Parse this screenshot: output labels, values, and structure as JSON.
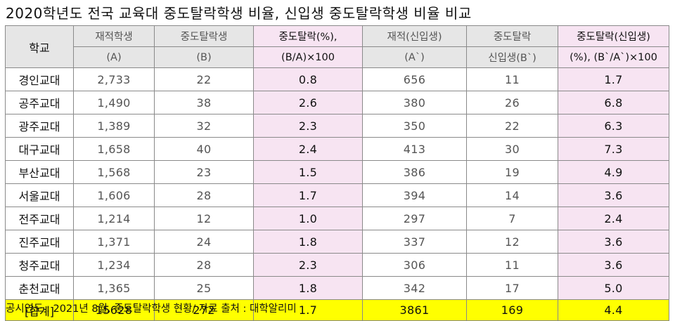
{
  "title": "2020학년도 전국 교육대 중도탈락학생 비율, 신입생 중도탈락학생 비율 비교",
  "header": {
    "school": "학교",
    "enrolled_l1": "재적학생",
    "enrolled_l2": "(A)",
    "dropout_l1": "중도탈락생",
    "dropout_l2": "(B)",
    "rate_l1": "중도탈락(%),",
    "rate_l2": "(B/A)×100",
    "fresh_enrolled_l1": "재적(신입생)",
    "fresh_enrolled_l2": "(A`)",
    "fresh_dropout_l1": "중도탈락",
    "fresh_dropout_l2": "신입생(B`)",
    "fresh_rate_l1": "중도탈락(신입생)",
    "fresh_rate_l2": "(%), (B`/A`)×100"
  },
  "rows": [
    {
      "school": "경인교대",
      "enrolled": "2,733",
      "dropout": "22",
      "rate": "0.8",
      "fresh_enrolled": "656",
      "fresh_dropout": "11",
      "fresh_rate": "1.7"
    },
    {
      "school": "공주교대",
      "enrolled": "1,490",
      "dropout": "38",
      "rate": "2.6",
      "fresh_enrolled": "380",
      "fresh_dropout": "26",
      "fresh_rate": "6.8"
    },
    {
      "school": "광주교대",
      "enrolled": "1,389",
      "dropout": "32",
      "rate": "2.3",
      "fresh_enrolled": "350",
      "fresh_dropout": "22",
      "fresh_rate": "6.3"
    },
    {
      "school": "대구교대",
      "enrolled": "1,658",
      "dropout": "40",
      "rate": "2.4",
      "fresh_enrolled": "413",
      "fresh_dropout": "30",
      "fresh_rate": "7.3"
    },
    {
      "school": "부산교대",
      "enrolled": "1,568",
      "dropout": "23",
      "rate": "1.5",
      "fresh_enrolled": "386",
      "fresh_dropout": "19",
      "fresh_rate": "4.9"
    },
    {
      "school": "서울교대",
      "enrolled": "1,606",
      "dropout": "28",
      "rate": "1.7",
      "fresh_enrolled": "394",
      "fresh_dropout": "14",
      "fresh_rate": "3.6"
    },
    {
      "school": "전주교대",
      "enrolled": "1,214",
      "dropout": "12",
      "rate": "1.0",
      "fresh_enrolled": "297",
      "fresh_dropout": "7",
      "fresh_rate": "2.4"
    },
    {
      "school": "진주교대",
      "enrolled": "1,371",
      "dropout": "24",
      "rate": "1.8",
      "fresh_enrolled": "337",
      "fresh_dropout": "12",
      "fresh_rate": "3.6"
    },
    {
      "school": "청주교대",
      "enrolled": "1,234",
      "dropout": "28",
      "rate": "2.3",
      "fresh_enrolled": "306",
      "fresh_dropout": "11",
      "fresh_rate": "3.6"
    },
    {
      "school": "춘천교대",
      "enrolled": "1,365",
      "dropout": "25",
      "rate": "1.8",
      "fresh_enrolled": "342",
      "fresh_dropout": "17",
      "fresh_rate": "5.0"
    }
  ],
  "total": {
    "school": "[합계]",
    "enrolled": "15628",
    "dropout": "272",
    "rate": "1.7",
    "fresh_enrolled": "3861",
    "fresh_dropout": "169",
    "fresh_rate": "4.4"
  },
  "footer": "공시연도 : 2021년 8월, 중도탈락학생 현황/ 자료 출처 : 대학알리미",
  "colors": {
    "header_bg": "#e6e6e6",
    "rate_bg": "#f7e4f2",
    "total_bg": "#ffff00",
    "border": "#8a8a8a"
  }
}
